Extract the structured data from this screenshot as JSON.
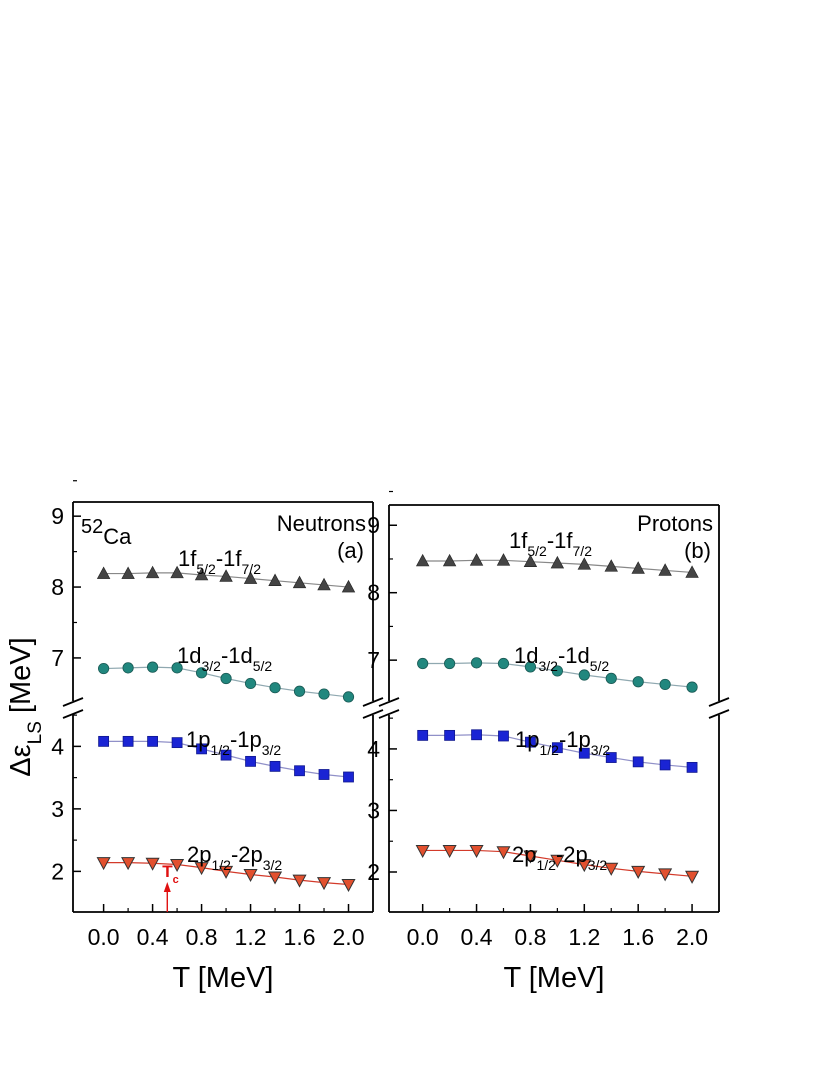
{
  "chart_data": [
    {
      "type": "scatter",
      "panel": "a",
      "panel_label": "(a)",
      "nucleus": {
        "mass": "52",
        "symbol": "Ca"
      },
      "species": "Neutrons",
      "xlabel": "T [MeV]",
      "ylabel": "Δε",
      "ylabel_sub": "LS",
      "ylabel_unit": " [MeV]",
      "xlim": [
        -0.25,
        2.2
      ],
      "x_ticks": [
        "0.0",
        "0.4",
        "0.8",
        "1.2",
        "1.6",
        "2.0"
      ],
      "y_break": true,
      "ylim_lower": [
        1.35,
        4.55
      ],
      "ylim_upper": [
        6.35,
        9.2
      ],
      "y_ticks_lower": [
        "2",
        "3",
        "4"
      ],
      "y_ticks_upper": [
        "7",
        "8",
        "9"
      ],
      "x": [
        0.0,
        0.2,
        0.4,
        0.6,
        0.8,
        1.0,
        1.2,
        1.4,
        1.6,
        1.8,
        2.0
      ],
      "series": [
        {
          "label": "1f",
          "sub1": "5/2",
          "mid": "-1f",
          "sub2": "7/2",
          "marker": "triangle-up",
          "color": "#444444",
          "line_color": "#888888",
          "segment": "upper",
          "values": [
            8.19,
            8.19,
            8.2,
            8.2,
            8.17,
            8.15,
            8.12,
            8.09,
            8.06,
            8.03,
            8.0
          ]
        },
        {
          "label": "1d",
          "sub1": "3/2",
          "mid": "-1d",
          "sub2": "5/2",
          "marker": "circle",
          "color": "#21877e",
          "line_color": "#8fa8b0",
          "segment": "upper",
          "values": [
            6.85,
            6.86,
            6.87,
            6.86,
            6.79,
            6.71,
            6.64,
            6.58,
            6.53,
            6.49,
            6.45
          ]
        },
        {
          "label": "1p",
          "sub1": "1/2",
          "mid": "-1p",
          "sub2": "3/2",
          "marker": "square",
          "color": "#1a24d4",
          "line_color": "#9090c8",
          "segment": "lower",
          "values": [
            4.08,
            4.08,
            4.08,
            4.06,
            3.96,
            3.86,
            3.76,
            3.68,
            3.61,
            3.55,
            3.51
          ]
        },
        {
          "label": "2p",
          "sub1": "1/2",
          "mid": "-2p",
          "sub2": "3/2",
          "marker": "triangle-down",
          "color": "#e2502e",
          "line_color": "#d33a2a",
          "segment": "lower",
          "values": [
            2.14,
            2.14,
            2.13,
            2.11,
            2.06,
            2.0,
            1.95,
            1.91,
            1.86,
            1.82,
            1.79
          ]
        }
      ],
      "annotation": {
        "text": "T",
        "sub": "c",
        "x": 0.52,
        "color": "#e01010"
      }
    },
    {
      "type": "scatter",
      "panel": "b",
      "panel_label": "(b)",
      "species": "Protons",
      "xlabel": "T [MeV]",
      "xlim": [
        -0.25,
        2.2
      ],
      "x_ticks": [
        "0.0",
        "0.4",
        "0.8",
        "1.2",
        "1.6",
        "2.0"
      ],
      "y_break": true,
      "ylim_lower": [
        1.35,
        4.6
      ],
      "ylim_upper": [
        6.35,
        9.3
      ],
      "y_ticks_lower": [
        "2",
        "3",
        "4"
      ],
      "y_ticks_upper": [
        "7",
        "8",
        "9"
      ],
      "x": [
        0.0,
        0.2,
        0.4,
        0.6,
        0.8,
        1.0,
        1.2,
        1.4,
        1.6,
        1.8,
        2.0
      ],
      "series": [
        {
          "label": "1f",
          "sub1": "5/2",
          "mid": "-1f",
          "sub2": "7/2",
          "marker": "triangle-up",
          "color": "#444444",
          "line_color": "#888888",
          "segment": "upper",
          "values": [
            8.47,
            8.47,
            8.48,
            8.48,
            8.46,
            8.44,
            8.42,
            8.39,
            8.36,
            8.33,
            8.3
          ]
        },
        {
          "label": "1d",
          "sub1": "3/2",
          "mid": "-1d",
          "sub2": "5/2",
          "marker": "circle",
          "color": "#21877e",
          "line_color": "#8fa8b0",
          "segment": "upper",
          "values": [
            6.95,
            6.95,
            6.96,
            6.95,
            6.9,
            6.84,
            6.78,
            6.73,
            6.68,
            6.64,
            6.6
          ]
        },
        {
          "label": "1p",
          "sub1": "1/2",
          "mid": "-1p",
          "sub2": "3/2",
          "marker": "square",
          "color": "#1a24d4",
          "line_color": "#9090c8",
          "segment": "lower",
          "values": [
            4.22,
            4.22,
            4.23,
            4.21,
            4.11,
            4.02,
            3.93,
            3.86,
            3.79,
            3.74,
            3.7
          ]
        },
        {
          "label": "2p",
          "sub1": "1/2",
          "mid": "-2p",
          "sub2": "3/2",
          "marker": "triangle-down",
          "color": "#e2502e",
          "line_color": "#d33a2a",
          "segment": "lower",
          "values": [
            2.35,
            2.35,
            2.35,
            2.33,
            2.26,
            2.19,
            2.12,
            2.06,
            2.01,
            1.97,
            1.93
          ]
        }
      ]
    }
  ]
}
